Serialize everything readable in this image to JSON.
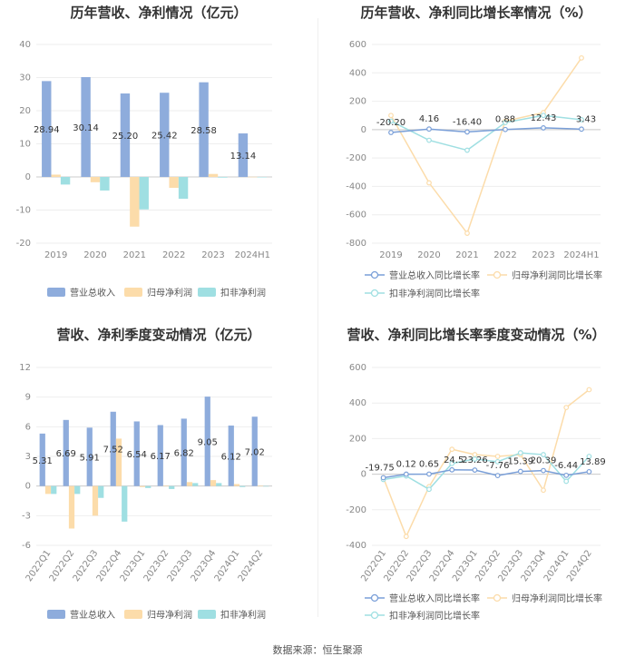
{
  "source": "数据来源：恒生聚源",
  "colors": {
    "revenue": "#8eacdc",
    "net_profit": "#fcdcaa",
    "deducted_profit": "#9fdfe2",
    "revenue_line": "#7a9fd8",
    "grid": "#eeeeee"
  },
  "chart_data": [
    {
      "id": "annual_amounts",
      "type": "bar",
      "title": "历年营收、净利情况（亿元）",
      "categories": [
        "2019",
        "2020",
        "2021",
        "2022",
        "2023",
        "2024H1"
      ],
      "ylim": [
        -20,
        40
      ],
      "yticks": [
        40,
        30,
        20,
        10,
        0,
        -10,
        -20
      ],
      "series": [
        {
          "name": "营业总收入",
          "values": [
            28.94,
            30.14,
            25.2,
            25.42,
            28.58,
            13.14
          ],
          "labels": [
            "28.94",
            "30.14",
            "25.20",
            "25.42",
            "28.58",
            "13.14"
          ]
        },
        {
          "name": "归母净利润",
          "values": [
            0.7,
            -1.6,
            -15.0,
            -3.3,
            0.9,
            0.05
          ]
        },
        {
          "name": "扣非净利润",
          "values": [
            -2.3,
            -4.1,
            -9.8,
            -6.6,
            -0.2,
            -0.1
          ]
        }
      ]
    },
    {
      "id": "annual_growth",
      "type": "line",
      "title": "历年营收、净利同比增长率情况（%）",
      "categories": [
        "2019",
        "2020",
        "2021",
        "2022",
        "2023",
        "2024H1"
      ],
      "ylim": [
        -800,
        600
      ],
      "yticks": [
        600,
        400,
        200,
        0,
        -200,
        -400,
        -600,
        -800
      ],
      "series": [
        {
          "name": "营业总收入同比增长率",
          "values": [
            -20.2,
            4.16,
            -16.4,
            0.88,
            12.43,
            3.43
          ],
          "labels": [
            "-20.20",
            "4.16",
            "-16.40",
            "0.88",
            "12.43",
            "3.43"
          ]
        },
        {
          "name": "归母净利润同比增长率",
          "values": [
            100,
            -375,
            -730,
            60,
            120,
            505
          ]
        },
        {
          "name": "扣非净利润同比增长率",
          "values": [
            60,
            -75,
            -145,
            50,
            100,
            70
          ]
        }
      ]
    },
    {
      "id": "quarterly_amounts",
      "type": "bar",
      "title": "营收、净利季度变动情况（亿元）",
      "categories": [
        "2022Q1",
        "2022Q2",
        "2022Q3",
        "2022Q4",
        "2023Q1",
        "2023Q2",
        "2023Q3",
        "2023Q4",
        "2024Q1",
        "2024Q2"
      ],
      "ylim": [
        -6,
        12
      ],
      "yticks": [
        12,
        9,
        6,
        3,
        0,
        -3,
        -6
      ],
      "series": [
        {
          "name": "营业总收入",
          "values": [
            5.31,
            6.69,
            5.91,
            7.52,
            6.54,
            6.17,
            6.82,
            9.05,
            6.12,
            7.02
          ],
          "labels": [
            "5.31",
            "6.69",
            "5.91",
            "7.52",
            "6.54",
            "6.17",
            "6.82",
            "9.05",
            "6.12",
            "7.02"
          ]
        },
        {
          "name": "归母净利润",
          "values": [
            -0.8,
            -4.3,
            -3.0,
            4.8,
            -0.1,
            0.05,
            0.4,
            0.6,
            0.2,
            0.05
          ]
        },
        {
          "name": "扣非净利润",
          "values": [
            -0.8,
            -0.8,
            -1.2,
            -3.6,
            -0.2,
            -0.3,
            0.3,
            0.3,
            -0.1,
            -0.05
          ]
        }
      ]
    },
    {
      "id": "quarterly_growth",
      "type": "line",
      "title": "营收、净利同比增长率季度变动情况（%）",
      "categories": [
        "2022Q1",
        "2022Q2",
        "2022Q3",
        "2022Q4",
        "2023Q1",
        "2023Q2",
        "2023Q3",
        "2023Q4",
        "2024Q1",
        "2024Q2"
      ],
      "ylim": [
        -400,
        600
      ],
      "yticks": [
        600,
        400,
        200,
        0,
        -200,
        -400
      ],
      "series": [
        {
          "name": "营业总收入同比增长率",
          "values": [
            -19.75,
            0.12,
            0.65,
            24.5,
            23.26,
            -7.76,
            15.39,
            20.39,
            -6.44,
            13.89
          ],
          "labels": [
            "-19.75",
            "0.12",
            "0.65",
            "24.5",
            "23.26",
            "-7.76",
            "15.39",
            "20.39",
            "-6.44",
            "13.89"
          ]
        },
        {
          "name": "归母净利润同比增长率",
          "values": [
            -20,
            -350,
            -70,
            140,
            110,
            100,
            110,
            -90,
            375,
            475
          ]
        },
        {
          "name": "扣非净利润同比增长率",
          "values": [
            -30,
            -10,
            -85,
            60,
            85,
            70,
            120,
            110,
            -40,
            100
          ]
        }
      ]
    }
  ]
}
